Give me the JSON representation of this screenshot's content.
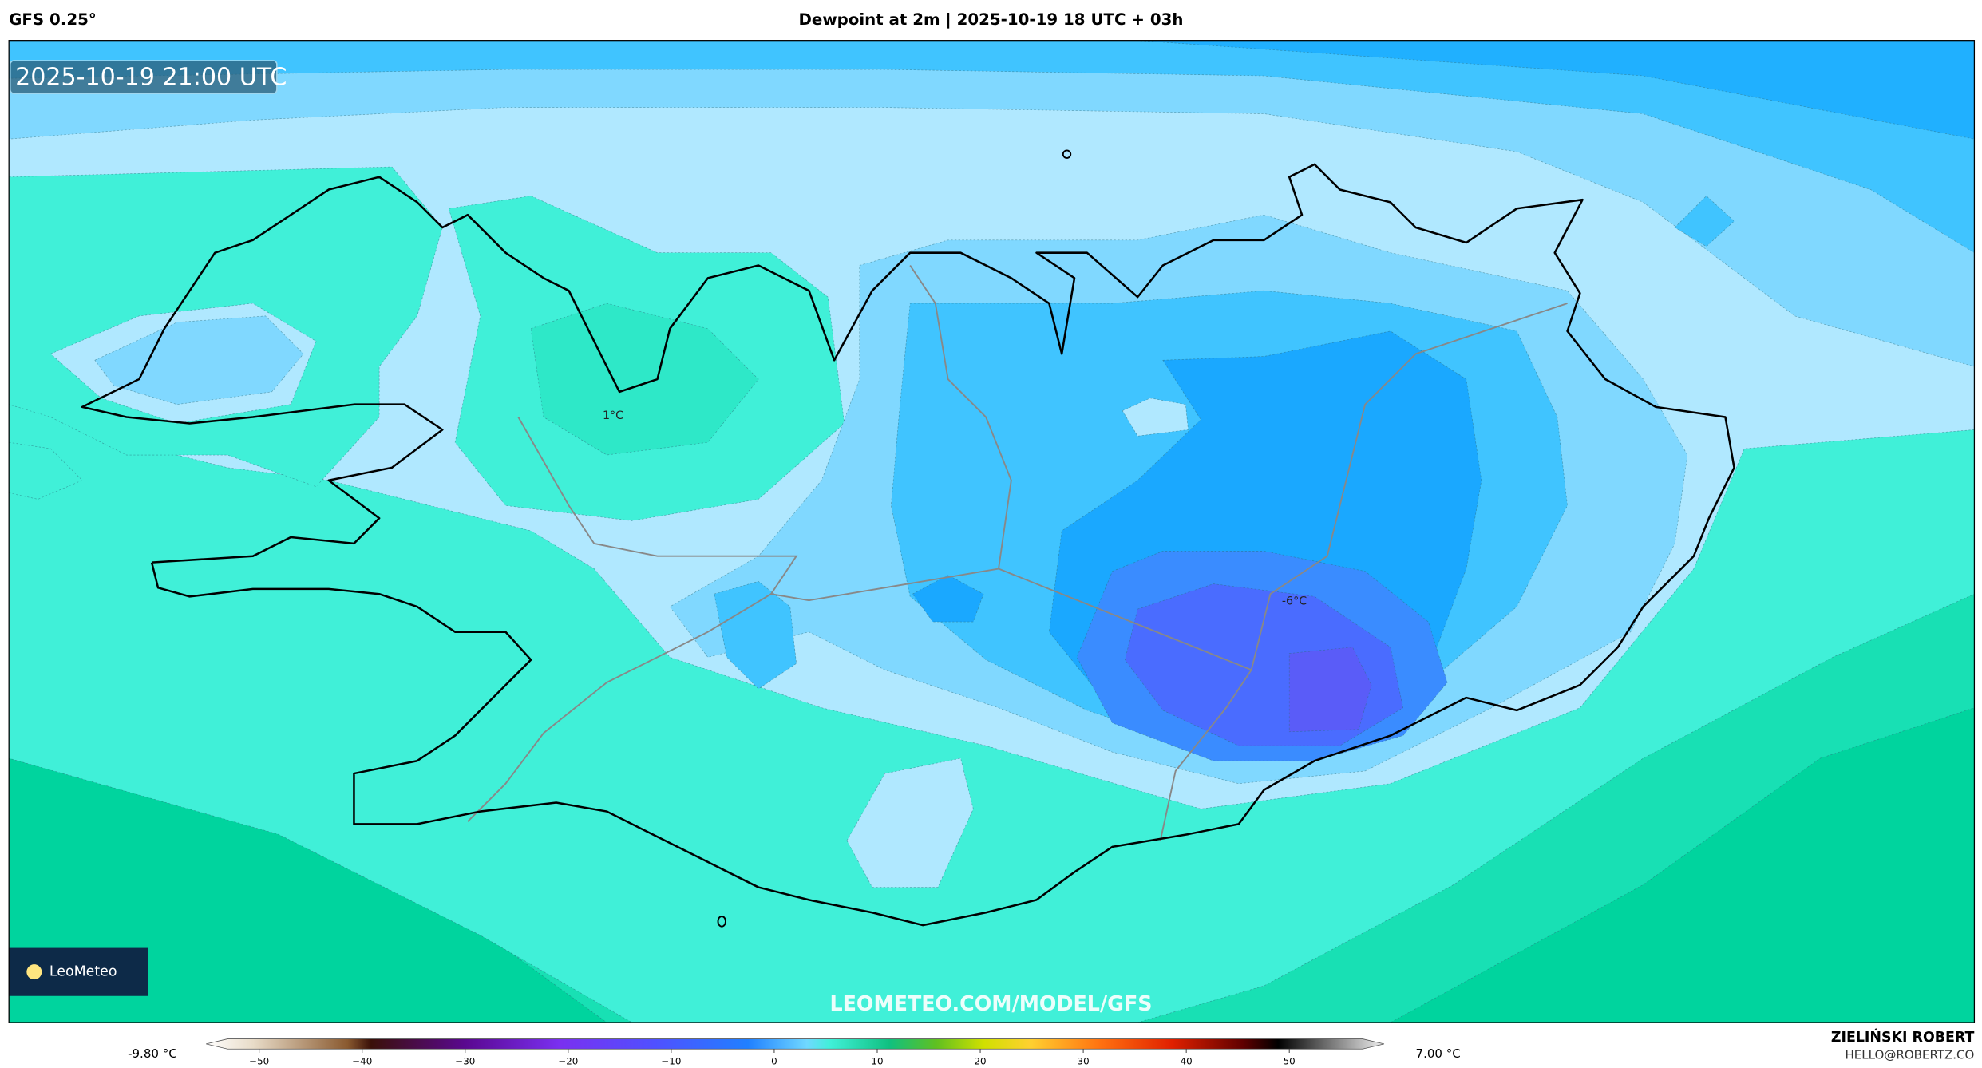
{
  "header": {
    "left": "GFS 0.25°",
    "title": "Dewpoint at 2m | 2025-10-19 18 UTC + 03h"
  },
  "map": {
    "timestamp": "2025-10-19 21:00 UTC",
    "labels": [
      "1°C",
      "-6°C"
    ],
    "watermark": "LEOMETEO.COM/MODEL/GFS",
    "logo": "LeoMeteo"
  },
  "colorbar": {
    "min_label": "-9.80 °C",
    "max_label": "7.00 °C",
    "ticks": [
      {
        "value": -50,
        "label": "−50"
      },
      {
        "value": -40,
        "label": "−40"
      },
      {
        "value": -30,
        "label": "−30"
      },
      {
        "value": -20,
        "label": "−20"
      },
      {
        "value": -10,
        "label": "−10"
      },
      0,
      10,
      20,
      30,
      40,
      50
    ]
  },
  "credits": {
    "name": "ZIELIŃSKI ROBERT",
    "email": "HELLO@ROBERTZ.CO"
  }
}
